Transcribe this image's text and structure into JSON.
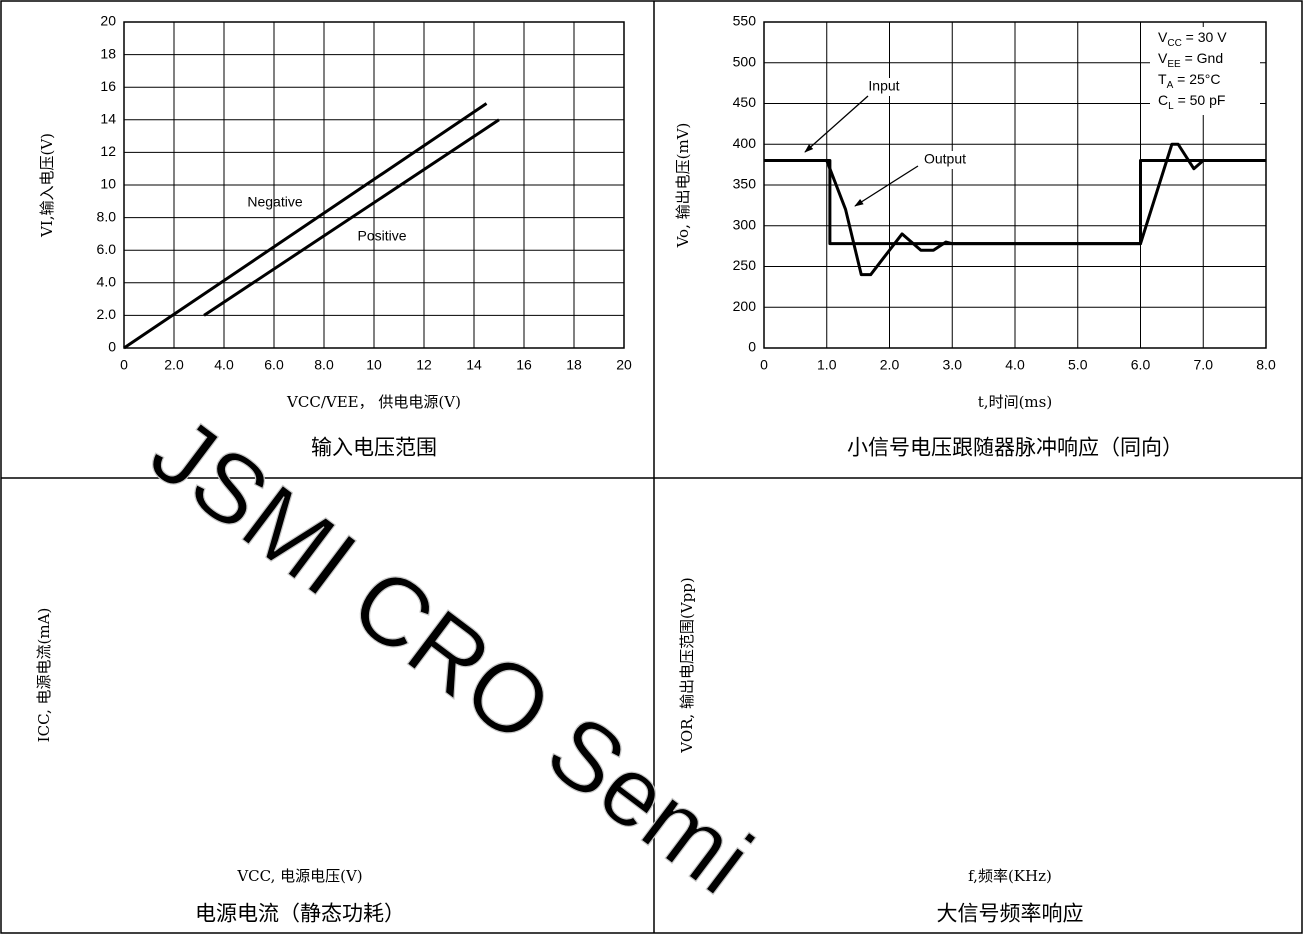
{
  "watermark": "JSMI CRO Semi",
  "chart_data": [
    {
      "type": "line",
      "title": "输入电压范围",
      "x_label": "VCC/VEE， 供电电源(V)",
      "y_label": "VI,输入电压(V)",
      "xlim": [
        0,
        20
      ],
      "ylim": [
        0,
        20
      ],
      "xticks": [
        0,
        {
          "value": 2,
          "label": "2.0"
        },
        {
          "value": 4,
          "label": "4.0"
        },
        {
          "value": 6,
          "label": "6.0"
        },
        {
          "value": 8,
          "label": "8.0"
        },
        10,
        12,
        14,
        16,
        18,
        20
      ],
      "yticks": [
        0,
        {
          "value": 2,
          "label": "2.0"
        },
        {
          "value": 4,
          "label": "4.0"
        },
        {
          "value": 6,
          "label": "6.0"
        },
        {
          "value": 8,
          "label": "8.0"
        },
        10,
        12,
        14,
        16,
        18,
        20
      ],
      "grid": true,
      "series": [
        {
          "name": "Negative",
          "color": "#000000",
          "x": [
            0,
            14.5
          ],
          "values": [
            0,
            15
          ]
        },
        {
          "name": "Positive",
          "color": "#000000",
          "x": [
            3.2,
            15
          ],
          "values": [
            2,
            14
          ]
        }
      ]
    },
    {
      "type": "line",
      "title": "小信号电压跟随器脉冲响应（同向）",
      "x_label": "t,时间(ms)",
      "y_label": "Vo, 输出电压(mV)",
      "xlim": [
        0,
        8
      ],
      "ylim": [
        0,
        550
      ],
      "y_axis_break": true,
      "xticks": [
        0,
        {
          "value": 1,
          "label": "1.0"
        },
        {
          "value": 2,
          "label": "2.0"
        },
        {
          "value": 3,
          "label": "3.0"
        },
        {
          "value": 4,
          "label": "4.0"
        },
        {
          "value": 5,
          "label": "5.0"
        },
        {
          "value": 6,
          "label": "6.0"
        },
        {
          "value": 7,
          "label": "7.0"
        },
        {
          "value": 8,
          "label": "8.0"
        }
      ],
      "yticks": [
        0,
        200,
        250,
        300,
        350,
        400,
        450,
        500,
        550
      ],
      "grid": true,
      "conditions": [
        {
          "main": "V",
          "sub": "CC",
          "rest": " = 30 V"
        },
        {
          "main": "V",
          "sub": "EE",
          "rest": " = Gnd"
        },
        {
          "main": "T",
          "sub": "A",
          "rest": " = 25°C"
        },
        {
          "main": "C",
          "sub": "L",
          "rest": " = 50 pF"
        }
      ],
      "series": [
        {
          "name": "Input",
          "color": "#000000",
          "x": [
            0,
            1.05,
            1.05,
            6.0,
            6.0,
            8.0
          ],
          "values": [
            380,
            380,
            278,
            278,
            380,
            380
          ]
        },
        {
          "name": "Output",
          "color": "#000000",
          "x": [
            0,
            1.0,
            1.3,
            1.55,
            1.7,
            1.9,
            2.2,
            2.5,
            2.7,
            2.9,
            3.0,
            6.0,
            6.5,
            6.6,
            6.85,
            7.0,
            7.3
          ],
          "values": [
            380,
            380,
            320,
            240,
            240,
            260,
            290,
            270,
            270,
            280,
            278,
            278,
            400,
            400,
            370,
            380,
            380
          ]
        }
      ]
    },
    {
      "type": "blank",
      "title": "电源电流（静态功耗）",
      "x_label": "VCC, 电源电压(V)",
      "y_label": "ICC, 电源电流(mA)"
    },
    {
      "type": "blank",
      "title": "大信号频率响应",
      "x_label": "f,频率(KHz)",
      "y_label": "VOR, 输出电压范围(Vpp)"
    }
  ]
}
